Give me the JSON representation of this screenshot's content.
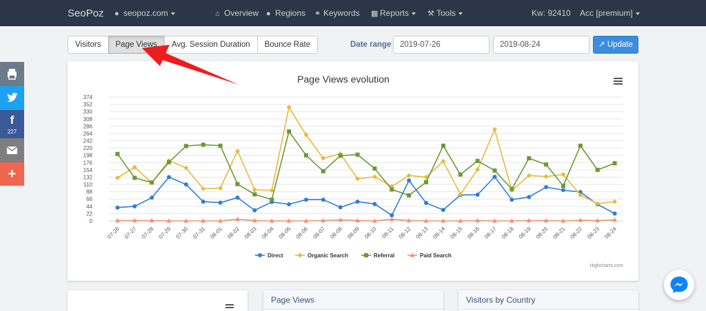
{
  "navbar": {
    "brand": "SeoPoz",
    "site": "seopoz.com",
    "overview": "Overview",
    "regions": "Regions",
    "keywords": "Keywords",
    "reports": "Reports",
    "tools": "Tools",
    "kw": "Kw: 92410",
    "account": "Acc [premium]"
  },
  "tabs": [
    "Visitors",
    "Page Views",
    "Avg. Session Duration",
    "Bounce Rate"
  ],
  "active_tab": "Page Views",
  "date_range": {
    "label": "Date range",
    "start": "2019-07-26",
    "end": "2019-08-24",
    "update": "Update"
  },
  "social": {
    "facebook_count": "227"
  },
  "panels": {
    "page_views": "Page Views",
    "visitors_by_country": "Visitors by Country"
  },
  "credits": "Highcharts.com",
  "colors": {
    "direct": "#2f7ed8",
    "organic": "#e9b93a",
    "referral": "#6b9a35",
    "paid": "#f4926d",
    "navbar": "#2b3648",
    "accent": "#3c8dde",
    "arrow": "#ee1c1c"
  },
  "chart_data": {
    "type": "line",
    "title": "Page Views evolution",
    "categories": [
      "07-26",
      "07-27",
      "07-28",
      "07-29",
      "07-30",
      "07-31",
      "08-01",
      "08-02",
      "08-03",
      "08-04",
      "08-05",
      "08-06",
      "08-07",
      "08-08",
      "08-09",
      "08-10",
      "08-11",
      "08-12",
      "08-13",
      "08-14",
      "08-15",
      "08-16",
      "08-17",
      "08-18",
      "08-19",
      "08-20",
      "08-21",
      "08-22",
      "08-23",
      "08-24"
    ],
    "yticks": [
      0,
      22,
      44,
      66,
      88,
      110,
      132,
      154,
      176,
      198,
      220,
      242,
      264,
      286,
      308,
      330,
      352,
      374
    ],
    "ylim": [
      0,
      374
    ],
    "grid": true,
    "legend_position": "bottom",
    "series": [
      {
        "name": "Direct",
        "color": "#2f7ed8",
        "marker": "circle",
        "values": [
          40,
          44,
          70,
          132,
          110,
          58,
          55,
          70,
          32,
          57,
          50,
          64,
          64,
          41,
          58,
          51,
          17,
          122,
          54,
          33,
          78,
          79,
          133,
          64,
          72,
          102,
          93,
          87,
          50,
          22
        ]
      },
      {
        "name": "Organic Search",
        "color": "#e9b93a",
        "marker": "diamond",
        "values": [
          130,
          162,
          115,
          182,
          160,
          97,
          99,
          211,
          94,
          92,
          343,
          260,
          189,
          203,
          127,
          133,
          104,
          137,
          132,
          180,
          80,
          155,
          276,
          92,
          137,
          134,
          140,
          78,
          52,
          58
        ]
      },
      {
        "name": "Referral",
        "color": "#6b9a35",
        "marker": "square",
        "values": [
          202,
          130,
          116,
          177,
          226,
          230,
          227,
          111,
          80,
          64,
          270,
          198,
          150,
          197,
          200,
          158,
          95,
          77,
          117,
          227,
          140,
          181,
          152,
          96,
          189,
          170,
          106,
          227,
          154,
          174
        ]
      },
      {
        "name": "Paid Search",
        "color": "#f4926d",
        "marker": "triangle",
        "values": [
          1,
          1,
          1,
          0,
          0,
          0,
          0,
          5,
          1,
          0,
          0,
          0,
          1,
          3,
          1,
          0,
          5,
          1,
          0,
          0,
          0,
          1,
          0,
          0,
          1,
          1,
          0,
          2,
          1,
          3
        ]
      }
    ]
  }
}
